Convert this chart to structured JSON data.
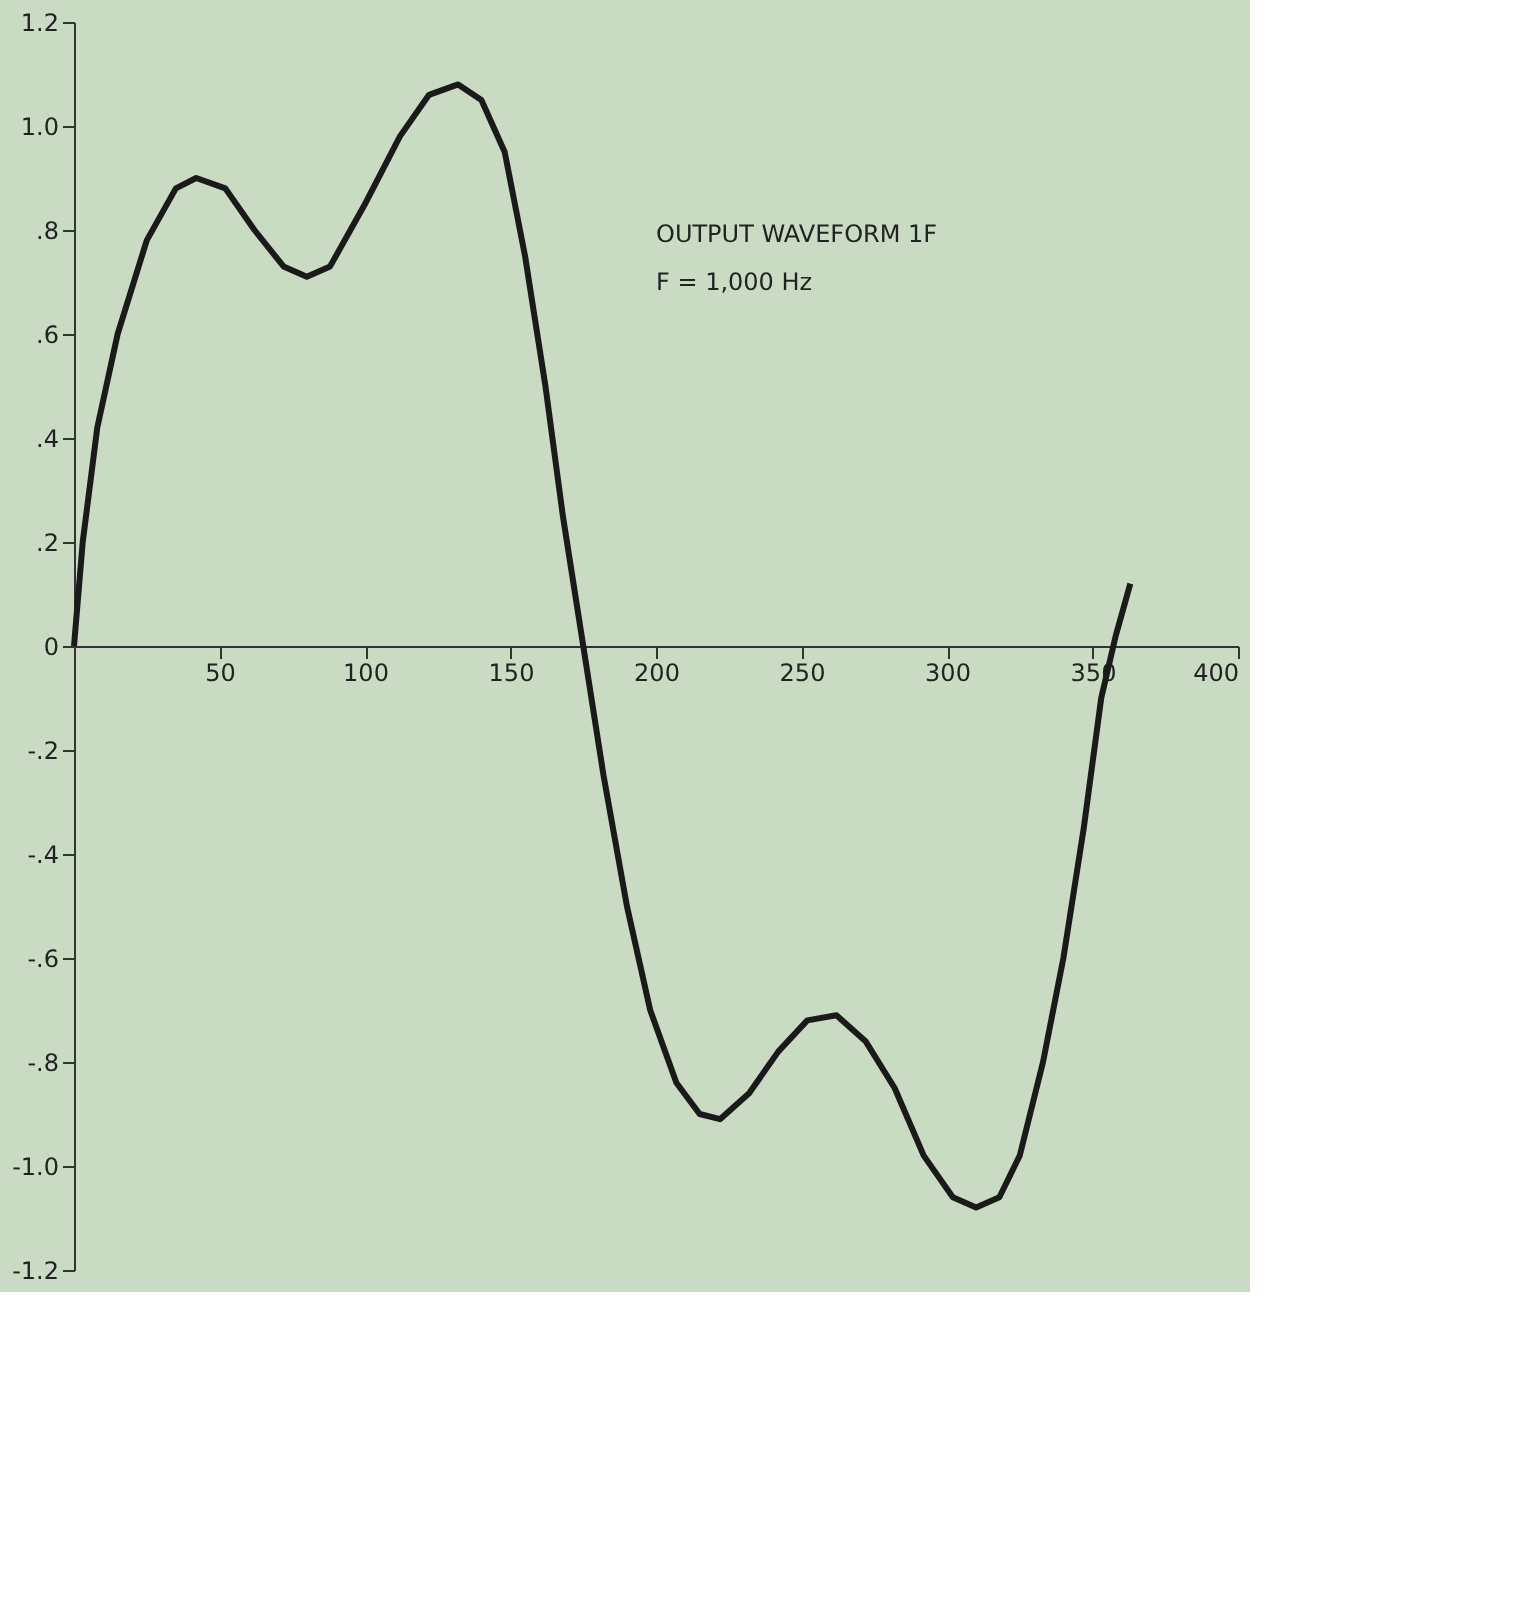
{
  "chart_data": {
    "type": "line",
    "xlim": [
      0,
      400
    ],
    "ylim": [
      -1.2,
      1.2
    ],
    "xticks": [
      50,
      100,
      150,
      200,
      250,
      300,
      350,
      400
    ],
    "yticks": [
      {
        "value": 1.2,
        "label": "1.2"
      },
      {
        "value": 1.0,
        "label": "1.0"
      },
      {
        "value": 0.8,
        "label": ".8"
      },
      {
        "value": 0.6,
        "label": ".6"
      },
      {
        "value": 0.4,
        "label": ".4"
      },
      {
        "value": 0.2,
        "label": ".2"
      },
      {
        "value": 0,
        "label": "0"
      },
      {
        "value": -0.2,
        "label": "-.2"
      },
      {
        "value": -0.4,
        "label": "-.4"
      },
      {
        "value": -0.6,
        "label": "-.6"
      },
      {
        "value": -0.8,
        "label": "-.8"
      },
      {
        "value": -1.0,
        "label": "-1.0"
      },
      {
        "value": -1.2,
        "label": "-1.2"
      }
    ],
    "annotations": [
      "OUTPUT WAVEFORM 1F",
      "F = 1,000 Hz"
    ],
    "grid": false,
    "marker": "none",
    "line_style": "solid",
    "series": [
      {
        "color": "#1a1a1a",
        "x": [
          0,
          3,
          8,
          15,
          25,
          35,
          42,
          52,
          62,
          72,
          80,
          88,
          100,
          112,
          122,
          132,
          140,
          148,
          155,
          162,
          168,
          175,
          182,
          190,
          198,
          207,
          215,
          222,
          232,
          242,
          252,
          262,
          272,
          282,
          292,
          302,
          310,
          318,
          325,
          333,
          340,
          347,
          353,
          358,
          363
        ],
        "values": [
          0,
          0.2,
          0.42,
          0.6,
          0.78,
          0.88,
          0.9,
          0.88,
          0.8,
          0.73,
          0.71,
          0.73,
          0.85,
          0.98,
          1.06,
          1.08,
          1.05,
          0.95,
          0.75,
          0.5,
          0.25,
          0,
          -0.25,
          -0.5,
          -0.7,
          -0.84,
          -0.9,
          -0.91,
          -0.86,
          -0.78,
          -0.72,
          -0.71,
          -0.76,
          -0.85,
          -0.98,
          -1.06,
          -1.08,
          -1.06,
          -0.98,
          -0.8,
          -0.6,
          -0.35,
          -0.1,
          0.02,
          0.12
        ]
      }
    ]
  }
}
